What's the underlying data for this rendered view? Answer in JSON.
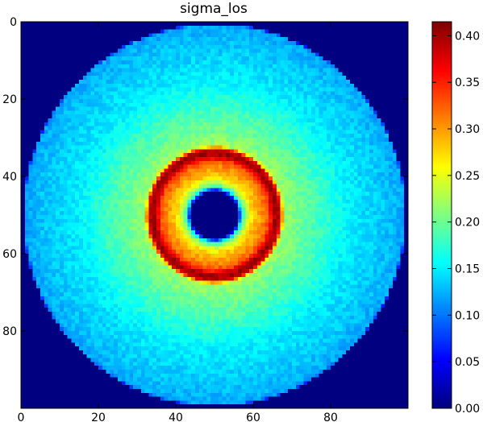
{
  "chart_data": {
    "type": "heatmap",
    "title": "sigma_los",
    "xlabel": "",
    "ylabel": "",
    "colormap": "jet",
    "grid": false,
    "image_shape": [
      100,
      100
    ],
    "xlim": [
      0,
      100
    ],
    "ylim": [
      100,
      0
    ],
    "x_ticks": [
      0,
      20,
      40,
      60,
      80
    ],
    "x_tick_labels": [
      "0",
      "20",
      "40",
      "60",
      "80"
    ],
    "y_ticks": [
      0,
      20,
      40,
      60,
      80
    ],
    "y_tick_labels": [
      "0",
      "20",
      "40",
      "60",
      "80"
    ],
    "colorbar": {
      "vmin": 0.0,
      "vmax": 0.415,
      "ticks": [
        0.0,
        0.05,
        0.1,
        0.15,
        0.2,
        0.25,
        0.3,
        0.35,
        0.4
      ],
      "tick_labels": [
        "0.00",
        "0.05",
        "0.10",
        "0.15",
        "0.20",
        "0.25",
        "0.30",
        "0.35",
        "0.40"
      ]
    },
    "background_value": 0.0,
    "radial_profile": {
      "center": [
        49.5,
        49.5
      ],
      "r": [
        0,
        6,
        7,
        8,
        10,
        12,
        14,
        15,
        16,
        17,
        18,
        20,
        22,
        25,
        30,
        35,
        40,
        45,
        49,
        50
      ],
      "value": [
        0.0,
        0.0,
        0.15,
        0.22,
        0.28,
        0.3,
        0.33,
        0.38,
        0.41,
        0.38,
        0.22,
        0.21,
        0.2,
        0.19,
        0.17,
        0.15,
        0.14,
        0.13,
        0.12,
        0.0
      ]
    }
  }
}
